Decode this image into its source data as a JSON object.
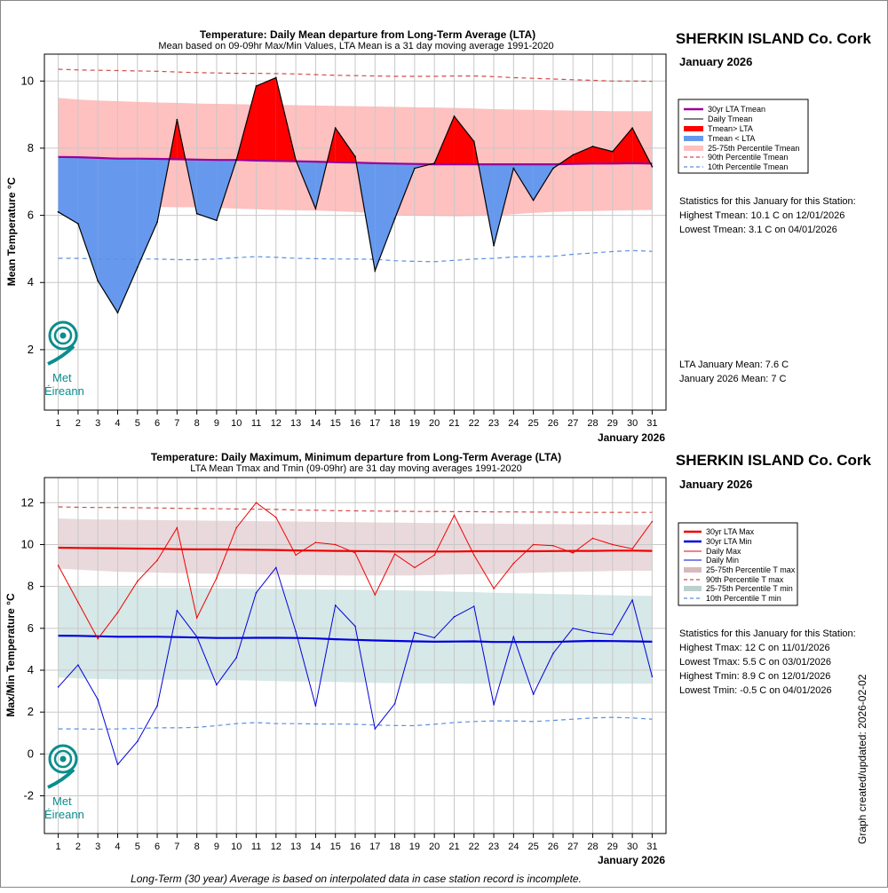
{
  "colors": {
    "lta_tmean": "#990099",
    "daily": "#000000",
    "above": "#ff0000",
    "below": "#6699ee",
    "p25_75_mean": "#ffc0c0",
    "p90": "#d24b4b",
    "p10": "#5b8fdf",
    "lta_max": "#ee0000",
    "lta_min": "#0000dd",
    "p25_75_max": "#e6d2d6",
    "p25_75_min": "#d2e6e4",
    "logo": "#0b8d8d"
  },
  "station": "SHERKIN ISLAND Co. Cork",
  "month_label": "January 2026",
  "xaxis_month": "January 2026",
  "footer": "Long-Term (30 year) Average is based on interpolated data in case station record is incomplete.",
  "updated": "Graph created/updated:  2026-02-02",
  "logo": {
    "line1": "Met",
    "line2": "Éireann",
    "icon": "met-eireann-spiral-logo"
  },
  "chart_data": [
    {
      "type": "line",
      "title": "Temperature: Daily Mean departure from Long-Term Average (LTA)",
      "subtitle": "Mean based on 09-09hr Max/Min Values, LTA Mean is a 31 day moving average 1991-2020",
      "ylabel": "Mean Temperature °C",
      "xlabel": "January 2026",
      "ylim": [
        0.2,
        10.8
      ],
      "yticks": [
        2,
        4,
        6,
        8,
        10
      ],
      "x": [
        1,
        2,
        3,
        4,
        5,
        6,
        7,
        8,
        9,
        10,
        11,
        12,
        13,
        14,
        15,
        16,
        17,
        18,
        19,
        20,
        21,
        22,
        23,
        24,
        25,
        26,
        27,
        28,
        29,
        30,
        31
      ],
      "series": [
        {
          "name": "Daily Tmean",
          "values": [
            6.1,
            5.75,
            4.05,
            3.1,
            4.45,
            5.8,
            8.85,
            6.05,
            5.85,
            7.65,
            9.85,
            10.1,
            7.65,
            6.2,
            8.6,
            7.75,
            4.35,
            5.9,
            7.4,
            7.55,
            8.95,
            8.2,
            5.1,
            7.4,
            6.45,
            7.4,
            7.8,
            8.05,
            7.9,
            8.6,
            7.45
          ]
        },
        {
          "name": "30yr LTA Tmean",
          "values": [
            7.74,
            7.73,
            7.71,
            7.69,
            7.69,
            7.68,
            7.67,
            7.66,
            7.65,
            7.65,
            7.63,
            7.62,
            7.61,
            7.6,
            7.58,
            7.57,
            7.55,
            7.54,
            7.53,
            7.52,
            7.52,
            7.52,
            7.52,
            7.52,
            7.52,
            7.52,
            7.53,
            7.54,
            7.54,
            7.55,
            7.54
          ]
        },
        {
          "name": "90th Percentile Tmean",
          "values": [
            10.35,
            10.33,
            10.32,
            10.31,
            10.3,
            10.29,
            10.27,
            10.25,
            10.24,
            10.23,
            10.23,
            10.22,
            10.21,
            10.19,
            10.17,
            10.16,
            10.15,
            10.14,
            10.14,
            10.14,
            10.15,
            10.15,
            10.13,
            10.1,
            10.08,
            10.06,
            10.04,
            10.02,
            10.0,
            10.0,
            9.99
          ]
        },
        {
          "name": "10th Percentile Tmean",
          "values": [
            4.72,
            4.72,
            4.7,
            4.7,
            4.7,
            4.7,
            4.68,
            4.68,
            4.7,
            4.74,
            4.77,
            4.75,
            4.72,
            4.71,
            4.7,
            4.7,
            4.69,
            4.65,
            4.63,
            4.62,
            4.66,
            4.7,
            4.72,
            4.76,
            4.77,
            4.78,
            4.84,
            4.88,
            4.92,
            4.95,
            4.93
          ]
        }
      ],
      "band": {
        "name": "25-75th Percentile Tmean",
        "upper": [
          9.5,
          9.45,
          9.42,
          9.4,
          9.38,
          9.36,
          9.35,
          9.33,
          9.32,
          9.31,
          9.3,
          9.29,
          9.28,
          9.27,
          9.26,
          9.25,
          9.24,
          9.23,
          9.22,
          9.21,
          9.2,
          9.18,
          9.16,
          9.15,
          9.14,
          9.13,
          9.12,
          9.11,
          9.1,
          9.1,
          9.1
        ],
        "lower": [
          6.4,
          6.38,
          6.35,
          6.3,
          6.27,
          6.25,
          6.24,
          6.24,
          6.22,
          6.2,
          6.18,
          6.16,
          6.15,
          6.14,
          6.12,
          6.1,
          6.06,
          6.02,
          5.99,
          5.98,
          5.97,
          5.98,
          6.0,
          6.03,
          6.07,
          6.1,
          6.12,
          6.13,
          6.14,
          6.15,
          6.16
        ]
      },
      "legend": [
        "30yr LTA Tmean",
        "Daily Tmean",
        "Tmean> LTA",
        "Tmean < LTA",
        "25-75th Percentile Tmean",
        "90th Percentile Tmean",
        "10th Percentile Tmean"
      ],
      "stats": [
        "Statistics for this January for this Station:",
        "Highest Tmean: 10.1 C on 12/01/2026",
        "Lowest Tmean: 3.1 C on 04/01/2026"
      ],
      "means": [
        "LTA January Mean: 7.6 C",
        "January 2026 Mean: 7 C"
      ]
    },
    {
      "type": "line",
      "title": "Temperature: Daily Maximum, Minimum departure from Long-Term Average (LTA)",
      "subtitle": "LTA Mean Tmax and Tmin (09-09hr) are 31 day moving averages 1991-2020",
      "ylabel": "Max/Min Temperature °C",
      "xlabel": "January 2026",
      "ylim": [
        -3.8,
        13.2
      ],
      "yticks": [
        -2,
        0,
        2,
        4,
        6,
        8,
        10,
        12
      ],
      "x": [
        1,
        2,
        3,
        4,
        5,
        6,
        7,
        8,
        9,
        10,
        11,
        12,
        13,
        14,
        15,
        16,
        17,
        18,
        19,
        20,
        21,
        22,
        23,
        24,
        25,
        26,
        27,
        28,
        29,
        30,
        31
      ],
      "series": [
        {
          "name": "Daily Max",
          "values": [
            9.0,
            7.25,
            5.5,
            6.75,
            8.25,
            9.25,
            10.8,
            6.5,
            8.4,
            10.8,
            12.0,
            11.3,
            9.5,
            10.1,
            10.0,
            9.6,
            7.6,
            9.55,
            8.9,
            9.5,
            11.4,
            9.5,
            7.9,
            9.1,
            10.0,
            9.95,
            9.6,
            10.3,
            10.0,
            9.8,
            11.1
          ]
        },
        {
          "name": "Daily Min",
          "values": [
            3.2,
            4.25,
            2.6,
            -0.5,
            0.6,
            2.3,
            6.85,
            5.6,
            3.3,
            4.6,
            7.7,
            8.9,
            5.85,
            2.3,
            7.1,
            6.1,
            1.2,
            2.4,
            5.8,
            5.55,
            6.55,
            7.05,
            2.35,
            5.6,
            2.85,
            4.8,
            6.0,
            5.8,
            5.7,
            7.35,
            3.7
          ]
        },
        {
          "name": "30yr LTA Max",
          "values": [
            9.85,
            9.84,
            9.83,
            9.82,
            9.81,
            9.8,
            9.78,
            9.77,
            9.77,
            9.76,
            9.75,
            9.74,
            9.72,
            9.71,
            9.7,
            9.69,
            9.68,
            9.67,
            9.67,
            9.67,
            9.67,
            9.68,
            9.68,
            9.68,
            9.68,
            9.69,
            9.7,
            9.7,
            9.71,
            9.71,
            9.7
          ]
        },
        {
          "name": "30yr LTA Min",
          "values": [
            5.65,
            5.64,
            5.62,
            5.6,
            5.6,
            5.6,
            5.58,
            5.56,
            5.54,
            5.54,
            5.55,
            5.55,
            5.54,
            5.52,
            5.48,
            5.45,
            5.42,
            5.4,
            5.38,
            5.36,
            5.37,
            5.38,
            5.35,
            5.35,
            5.35,
            5.35,
            5.38,
            5.4,
            5.39,
            5.38,
            5.36
          ]
        },
        {
          "name": "90th Percentile T max",
          "values": [
            11.8,
            11.78,
            11.77,
            11.77,
            11.76,
            11.75,
            11.73,
            11.72,
            11.71,
            11.7,
            11.69,
            11.68,
            11.65,
            11.64,
            11.62,
            11.61,
            11.6,
            11.59,
            11.58,
            11.58,
            11.57,
            11.57,
            11.56,
            11.56,
            11.55,
            11.55,
            11.54,
            11.54,
            11.54,
            11.54,
            11.54
          ]
        },
        {
          "name": "10th Percentile T min",
          "values": [
            1.2,
            1.2,
            1.18,
            1.2,
            1.22,
            1.25,
            1.25,
            1.27,
            1.35,
            1.45,
            1.5,
            1.45,
            1.45,
            1.43,
            1.43,
            1.42,
            1.38,
            1.36,
            1.35,
            1.42,
            1.5,
            1.55,
            1.58,
            1.58,
            1.55,
            1.6,
            1.66,
            1.72,
            1.75,
            1.72,
            1.66
          ]
        }
      ],
      "bands": [
        {
          "name": "25-75th Percentile T max",
          "upper": [
            11.25,
            11.22,
            11.2,
            11.19,
            11.18,
            11.17,
            11.16,
            11.15,
            11.14,
            11.13,
            11.12,
            11.11,
            11.1,
            11.09,
            11.08,
            11.07,
            11.06,
            11.05,
            11.04,
            11.03,
            11.02,
            11.01,
            11.0,
            10.99,
            10.98,
            10.98,
            10.97,
            10.96,
            10.95,
            10.94,
            10.94
          ],
          "lower": [
            8.85,
            8.8,
            8.75,
            8.7,
            8.68,
            8.66,
            8.64,
            8.62,
            8.6,
            8.6,
            8.58,
            8.56,
            8.55,
            8.54,
            8.53,
            8.52,
            8.52,
            8.52,
            8.53,
            8.55,
            8.57,
            8.58,
            8.6,
            8.62,
            8.65,
            8.68,
            8.7,
            8.72,
            8.74,
            8.75,
            8.75
          ]
        },
        {
          "name": "25-75th Percentile T min",
          "upper": [
            8.0,
            7.98,
            7.97,
            7.96,
            7.95,
            7.94,
            7.93,
            7.92,
            7.91,
            7.9,
            7.89,
            7.88,
            7.87,
            7.86,
            7.85,
            7.84,
            7.83,
            7.82,
            7.8,
            7.78,
            7.75,
            7.73,
            7.7,
            7.68,
            7.66,
            7.64,
            7.62,
            7.6,
            7.58,
            7.56,
            7.55
          ],
          "lower": [
            3.65,
            3.6,
            3.58,
            3.56,
            3.55,
            3.55,
            3.55,
            3.55,
            3.54,
            3.52,
            3.5,
            3.48,
            3.46,
            3.45,
            3.44,
            3.42,
            3.4,
            3.38,
            3.37,
            3.37,
            3.36,
            3.35,
            3.35,
            3.35,
            3.35,
            3.35,
            3.35,
            3.35,
            3.35,
            3.35,
            3.35
          ]
        }
      ],
      "legend": [
        "30yr LTA Max",
        "30yr LTA Min",
        "Daily Max",
        "Daily Min",
        "25-75th Percentile T max",
        "90th Percentile T max",
        "25-75th Percentile T min",
        "10th Percentile T min"
      ],
      "stats": [
        "Statistics for this January for this Station:",
        "Highest Tmax: 12 C on 11/01/2026",
        "Lowest Tmax: 5.5 C on 03/01/2026",
        "Highest Tmin: 8.9 C on 12/01/2026",
        "Lowest Tmin: -0.5 C on 04/01/2026"
      ]
    }
  ]
}
